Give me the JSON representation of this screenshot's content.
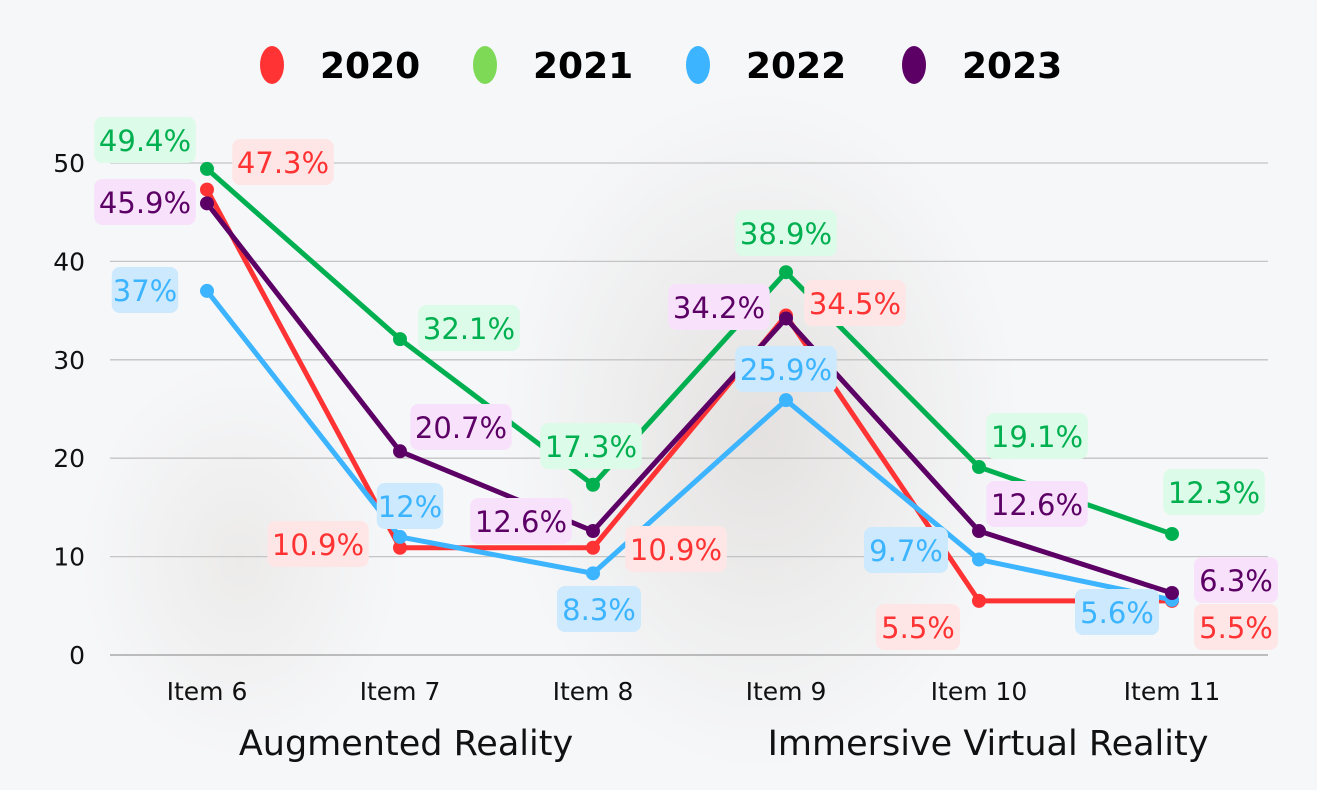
{
  "chart_data": {
    "type": "line",
    "categories": [
      "Item 6",
      "Item 7",
      "Item 8",
      "Item 9",
      "Item 10",
      "Item 11"
    ],
    "groups": [
      {
        "label": "Augmented Reality",
        "categories": [
          "Item 6",
          "Item 7",
          "Item 8"
        ]
      },
      {
        "label": "Immersive Virtual Reality",
        "categories": [
          "Item 9",
          "Item 10",
          "Item 11"
        ]
      }
    ],
    "ylim": [
      0,
      50
    ],
    "yticks": [
      0,
      10,
      20,
      30,
      40,
      50
    ],
    "grid": true,
    "legend_position": "top",
    "series": [
      {
        "name": "2020",
        "color": "#ff3333",
        "marker_color": "#ff3333",
        "label_bg": "#ffe6e6",
        "values": [
          47.3,
          10.9,
          10.9,
          34.5,
          5.5,
          5.5
        ],
        "labels": [
          "47.3%",
          "10.9%",
          "10.9%",
          "34.5%",
          "5.5%",
          "5.5%"
        ]
      },
      {
        "name": "2021",
        "color": "#00b050",
        "marker_color": "#7ed957",
        "label_bg": "#dcfbe8",
        "values": [
          49.4,
          32.1,
          17.3,
          38.9,
          19.1,
          12.3
        ],
        "labels": [
          "49.4%",
          "32.1%",
          "17.3%",
          "38.9%",
          "19.1%",
          "12.3%"
        ]
      },
      {
        "name": "2022",
        "color": "#3cb4ff",
        "marker_color": "#3cb4ff",
        "label_bg": "#cce9fd",
        "values": [
          37,
          12,
          8.3,
          25.9,
          9.7,
          5.6
        ],
        "labels": [
          "37%",
          "12%",
          "8.3%",
          "25.9%",
          "9.7%",
          "5.6%"
        ]
      },
      {
        "name": "2023",
        "color": "#5c0066",
        "marker_color": "#5c0066",
        "label_bg": "#f8e2fb",
        "values": [
          45.9,
          20.7,
          12.6,
          34.2,
          12.6,
          6.3
        ],
        "labels": [
          "45.9%",
          "20.7%",
          "12.6%",
          "34.2%",
          "12.6%",
          "6.3%"
        ]
      }
    ]
  }
}
